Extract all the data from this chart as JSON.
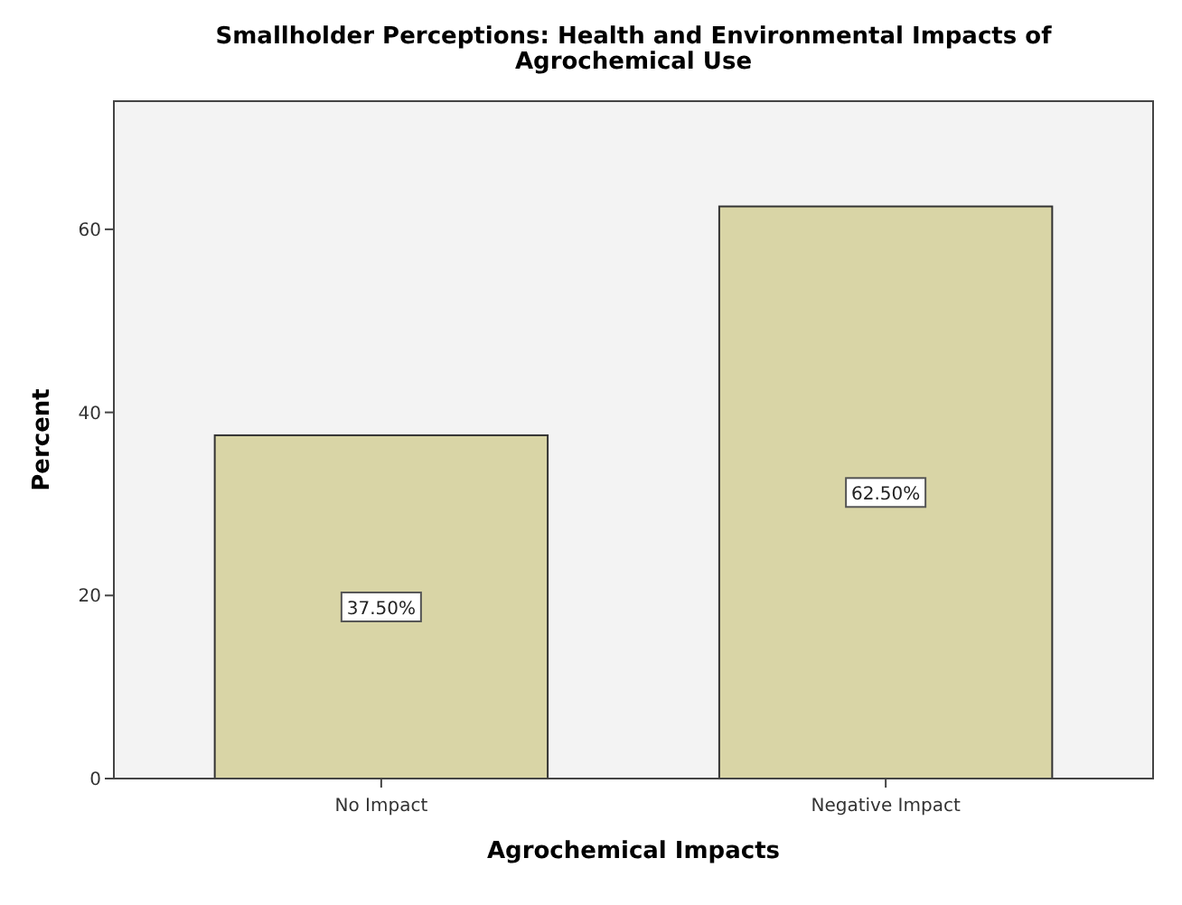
{
  "chart_data": {
    "type": "bar",
    "title": "Smallholder Perceptions: Health and Environmental Impacts of Agrochemical Use",
    "xlabel": "Agrochemical Impacts",
    "ylabel": "Percent",
    "categories": [
      "No Impact",
      "Negative Impact"
    ],
    "values": [
      37.5,
      62.5
    ],
    "value_labels": [
      "37.50%",
      "62.50%"
    ],
    "color": "#d9d5a6",
    "ylim": [
      0,
      74
    ],
    "yticks": [
      0,
      20,
      40,
      60
    ],
    "grid": false
  }
}
